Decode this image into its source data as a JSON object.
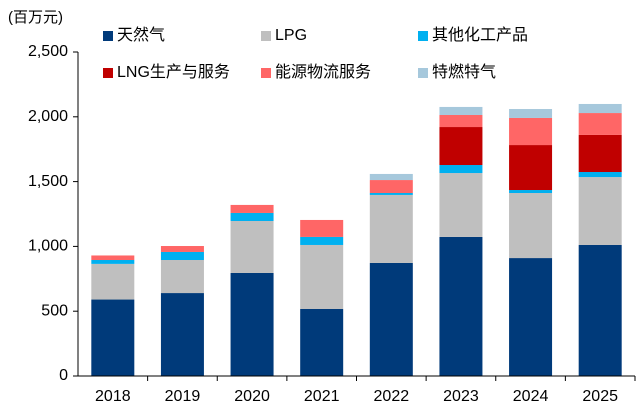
{
  "chart_data": {
    "type": "stacked_bar",
    "unit_label": "(百万元)",
    "categories": [
      "2018",
      "2019",
      "2020",
      "2021",
      "2022",
      "2023",
      "2024",
      "2025"
    ],
    "series": [
      {
        "name": "天然气",
        "color": "#003a7a",
        "values": [
          590,
          640,
          795,
          517,
          872,
          1073,
          910,
          1011
        ]
      },
      {
        "name": "LPG",
        "color": "#bfbfbf",
        "values": [
          275,
          255,
          401,
          494,
          525,
          493,
          502,
          524
        ]
      },
      {
        "name": "其他化工产品",
        "color": "#00b0f0",
        "values": [
          30,
          62,
          62,
          62,
          15,
          62,
          23,
          39
        ]
      },
      {
        "name": "LNG生产与服务",
        "color": "#c00000",
        "values": [
          0,
          0,
          0,
          0,
          0,
          293,
          347,
          286
        ]
      },
      {
        "name": "能源物流服务",
        "color": "#ff6666",
        "values": [
          35,
          46,
          62,
          131,
          100,
          93,
          209,
          169
        ]
      },
      {
        "name": "特燃特气",
        "color": "#a6c8dc",
        "values": [
          0,
          0,
          0,
          0,
          47,
          62,
          69,
          70
        ]
      }
    ],
    "ylim": [
      0,
      2500
    ],
    "yticks": [
      0,
      500,
      {
        "value": 1000,
        "label": "1,000"
      },
      {
        "value": 1500,
        "label": "1,500"
      },
      {
        "value": 2000,
        "label": "2,000"
      },
      {
        "value": 2500,
        "label": "2,500"
      }
    ],
    "grid": false
  }
}
